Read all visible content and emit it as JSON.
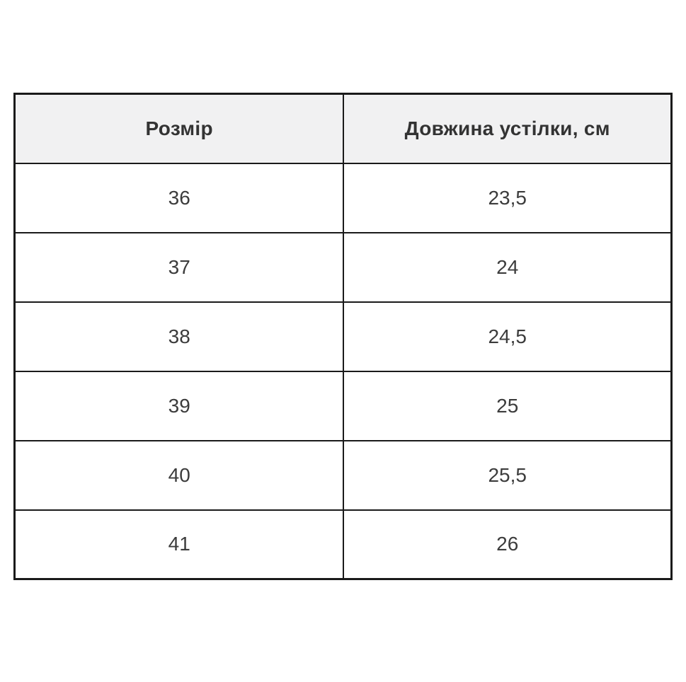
{
  "table": {
    "columns": [
      {
        "label": "Розмір"
      },
      {
        "label": "Довжина устілки, см"
      }
    ],
    "rows": [
      {
        "size": "36",
        "length": "23,5"
      },
      {
        "size": "37",
        "length": "24"
      },
      {
        "size": "38",
        "length": "24,5"
      },
      {
        "size": "39",
        "length": "25"
      },
      {
        "size": "40",
        "length": "25,5"
      },
      {
        "size": "41",
        "length": "26"
      }
    ]
  },
  "colors": {
    "header_background": "#f1f1f2",
    "header_text": "#333333",
    "cell_text": "#3c3c3c",
    "border": "#1a1a1a",
    "page_background": "#ffffff"
  },
  "chart_data": {
    "type": "table",
    "title": "",
    "columns": [
      "Розмір",
      "Довжина устілки, см"
    ],
    "rows": [
      [
        "36",
        "23,5"
      ],
      [
        "37",
        "24"
      ],
      [
        "38",
        "24,5"
      ],
      [
        "39",
        "25"
      ],
      [
        "40",
        "25,5"
      ],
      [
        "41",
        "26"
      ]
    ]
  }
}
